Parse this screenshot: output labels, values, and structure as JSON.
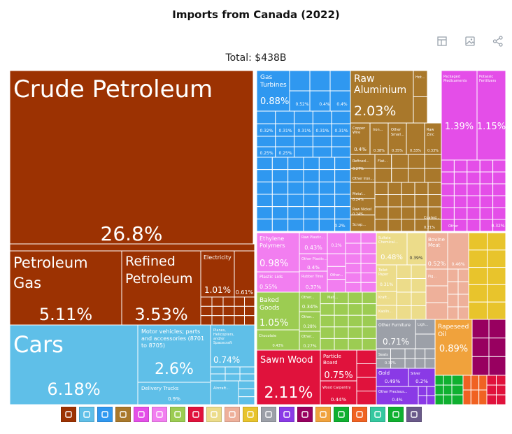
{
  "title": "Imports from Canada (2022)",
  "total_label": "Total: $438B",
  "toolbar": [
    {
      "name": "table-view-icon"
    },
    {
      "name": "image-download-icon"
    },
    {
      "name": "share-icon"
    }
  ],
  "colors": {
    "minerals": "#9c3202",
    "transport": "#5fbfe8",
    "machinery": "#2f98f0",
    "metals": "#a9782b",
    "chemicals": "#e44ee8",
    "plastics": "#f27ef0",
    "vegetables": "#9ccc52",
    "wood": "#e0123c",
    "paper": "#ecdc8a",
    "stone_glass": "#eeb09a",
    "foodstuffs": "#e8c42c",
    "misc": "#9ca0a8",
    "precious": "#8a3ae6",
    "animal": "#f0a23c",
    "textiles": "#0fb030",
    "instruments": "#980060",
    "hides": "#f06222"
  },
  "chart_data": {
    "type": "treemap",
    "title": "Imports from Canada (2022)",
    "total": "$438B",
    "items": [
      {
        "name": "Crude Petroleum",
        "share": 26.8,
        "value": "26.8%",
        "sector": "minerals"
      },
      {
        "name": "Petroleum Gas",
        "share": 5.11,
        "value": "5.11%",
        "sector": "minerals"
      },
      {
        "name": "Refined Petroleum",
        "share": 3.53,
        "value": "3.53%",
        "sector": "minerals"
      },
      {
        "name": "Electricity",
        "share": 1.01,
        "value": "1.01%",
        "sector": "minerals"
      },
      {
        "name": "",
        "share": 0.61,
        "value": "0.61%",
        "sector": "minerals"
      },
      {
        "name": "Cars",
        "share": 6.18,
        "value": "6.18%",
        "sector": "transport"
      },
      {
        "name": "Motor vehicles; parts and accessories (8701 to 8705)",
        "share": 2.6,
        "value": "2.6%",
        "sector": "transport"
      },
      {
        "name": "",
        "share": 0.74,
        "value": "0.74%",
        "sector": "transport"
      },
      {
        "name": "Delivery Trucks",
        "share": 0.9,
        "value": "0.9%",
        "sector": "transport"
      },
      {
        "name": "Gas Turbines",
        "share": 0.88,
        "value": "0.88%",
        "sector": "machinery"
      },
      {
        "name": "Raw Aluminium",
        "share": 2.03,
        "value": "2.03%",
        "sector": "metals"
      },
      {
        "name": "Copper Wire",
        "share": 0.4,
        "value": "0.4%",
        "sector": "metals"
      },
      {
        "name": "Packaged Medicaments",
        "share": 1.39,
        "value": "1.39%",
        "sector": "chemicals"
      },
      {
        "name": "Potassic Fertilizers",
        "share": 1.15,
        "value": "1.15%",
        "sector": "chemicals"
      },
      {
        "name": "Ethylene Polymers",
        "share": 0.98,
        "value": "0.98%",
        "sector": "plastics"
      },
      {
        "name": "Raw Plastic Sheeting",
        "share": 0.43,
        "value": "0.43%",
        "sector": "plastics"
      },
      {
        "name": "Plastic Lids",
        "share": 0.55,
        "value": "0.55%",
        "sector": "plastics"
      },
      {
        "name": "Rubber Tires",
        "share": 0.37,
        "value": "0.37%",
        "sector": "plastics"
      },
      {
        "name": "Baked Goods",
        "share": 1.05,
        "value": "1.05%",
        "sector": "vegetables"
      },
      {
        "name": "Chocolate",
        "share": 0.43,
        "value": "0.43%",
        "sector": "vegetables"
      },
      {
        "name": "Rapeseed Oil",
        "share": 0.89,
        "value": "0.89%",
        "sector": "animal"
      },
      {
        "name": "Sawn Wood",
        "share": 2.11,
        "value": "2.11%",
        "sector": "wood"
      },
      {
        "name": "Particle Board",
        "share": 0.75,
        "value": "0.75%",
        "sector": "wood"
      },
      {
        "name": "Wood Carpentry",
        "share": 0.44,
        "value": "0.44%",
        "sector": "wood"
      },
      {
        "name": "Sulfate Chemical Woodpulp",
        "share": 0.48,
        "value": "0.48%",
        "sector": "paper"
      },
      {
        "name": "Toilet Paper",
        "share": 0.31,
        "value": "0.31%",
        "sector": "paper"
      },
      {
        "name": "Bovine Meat",
        "share": 0.52,
        "value": "0.52%",
        "sector": "stone_glass"
      },
      {
        "name": "Other Furniture",
        "share": 0.71,
        "value": "0.71%",
        "sector": "misc"
      },
      {
        "name": "Gold",
        "share": 0.49,
        "value": "0.49%",
        "sector": "precious"
      },
      {
        "name": "Silver",
        "share": 0.2,
        "value": "0.2%",
        "sector": "precious"
      },
      {
        "name": "Other Precious Metals",
        "share": 0.4,
        "value": "0.4%",
        "sector": "precious"
      }
    ],
    "legend_sectors": [
      "minerals",
      "transport",
      "machinery",
      "metals",
      "chemicals",
      "plastics",
      "vegetables",
      "wood",
      "paper",
      "stone_glass",
      "foodstuffs",
      "misc",
      "precious",
      "instruments",
      "animal",
      "textiles",
      "hides",
      "instruments"
    ]
  },
  "tiles": [
    {
      "id": "crude",
      "sector": "minerals",
      "name": "Crude Petroleum",
      "val": "26.8%",
      "big": true
    },
    {
      "id": "pgas",
      "sector": "minerals",
      "name": "Petroleum Gas",
      "val": "5.11%",
      "big": true
    },
    {
      "id": "refined",
      "sector": "minerals",
      "name": "Refined Petroleum",
      "val": "3.53%",
      "big": true
    },
    {
      "id": "elec",
      "sector": "minerals",
      "name": "Electricity",
      "val": "1.01%",
      "big": false
    },
    {
      "id": "m061",
      "sector": "minerals",
      "name": "",
      "val": "0.61%",
      "big": false
    },
    {
      "id": "cars",
      "sector": "transport",
      "name": "Cars",
      "val": "6.18%",
      "big": true
    },
    {
      "id": "motorparts",
      "sector": "transport",
      "name": "Motor vehicles; parts and accessories (8701 to 8705)",
      "val": "2.6%",
      "big": true
    },
    {
      "id": "aircraft",
      "sector": "transport",
      "name": "Planes, Helicopters, and/or Spacecraft",
      "val": "0.74%",
      "big": false
    },
    {
      "id": "trucks",
      "sector": "transport",
      "name": "Delivery Trucks",
      "val": "0.9%",
      "big": false
    },
    {
      "id": "turbines",
      "sector": "machinery",
      "name": "Gas Turbines",
      "val": "0.88%",
      "big": false
    },
    {
      "id": "aluminium",
      "sector": "metals",
      "name": "Raw Aluminium",
      "val": "2.03%",
      "big": true
    },
    {
      "id": "copper",
      "sector": "metals",
      "name": "Copper Wire",
      "val": "0.4%",
      "big": false
    },
    {
      "id": "medic",
      "sector": "chemicals",
      "name": "Packaged Medicaments",
      "val": "1.39%",
      "big": false
    },
    {
      "id": "potass",
      "sector": "chemicals",
      "name": "Potassic Fertilizers",
      "val": "1.15%",
      "big": false
    },
    {
      "id": "ethyl",
      "sector": "plastics",
      "name": "Ethylene Polymers",
      "val": "0.98%",
      "big": false
    },
    {
      "id": "rawplastic",
      "sector": "plastics",
      "name": "Raw Plastic Sheeting",
      "val": "0.43%",
      "big": false
    },
    {
      "id": "lids",
      "sector": "plastics",
      "name": "Plastic Lids",
      "val": "0.55%",
      "big": false
    },
    {
      "id": "tires",
      "sector": "plastics",
      "name": "Rubber Tires",
      "val": "0.37%",
      "big": false
    },
    {
      "id": "baked",
      "sector": "vegetables",
      "name": "Baked Goods",
      "val": "1.05%",
      "big": false
    },
    {
      "id": "choc",
      "sector": "vegetables",
      "name": "Chocolate",
      "val": "0.43%",
      "big": false
    },
    {
      "id": "sawn",
      "sector": "wood",
      "name": "Sawn Wood",
      "val": "2.11%",
      "big": true
    },
    {
      "id": "particle",
      "sector": "wood",
      "name": "Particle Board",
      "val": "0.75%",
      "big": false
    },
    {
      "id": "woodcarp",
      "sector": "wood",
      "name": "Wood Carpentry",
      "val": "0.44%",
      "big": false
    },
    {
      "id": "pulp",
      "sector": "paper",
      "name": "Sulfate Chemical...",
      "val": "0.48%",
      "big": false
    },
    {
      "id": "toilet",
      "sector": "paper",
      "name": "Toilet Paper",
      "val": "0.31%",
      "big": false
    },
    {
      "id": "bovine",
      "sector": "stone_glass",
      "name": "Bovine Meat",
      "val": "0.52%",
      "big": false
    },
    {
      "id": "rapeseed",
      "sector": "animal",
      "name": "Rapeseed Oil",
      "val": "0.89%",
      "big": false
    },
    {
      "id": "furniture",
      "sector": "misc",
      "name": "Other Furniture",
      "val": "0.71%",
      "big": false
    },
    {
      "id": "gold",
      "sector": "precious",
      "name": "Gold",
      "val": "0.49%",
      "big": false
    },
    {
      "id": "silver",
      "sector": "precious",
      "name": "Silver",
      "val": "0.2%",
      "big": false
    },
    {
      "id": "otherprec",
      "sector": "precious",
      "name": "Other Precious Metals",
      "val": "0.4%",
      "big": false
    }
  ],
  "legend": [
    {
      "name": "minerals-legend",
      "color": "#9c3202",
      "icon": "pickaxe-icon"
    },
    {
      "name": "transport-legend",
      "color": "#5fbfe8",
      "icon": "road-icon"
    },
    {
      "name": "machinery-legend",
      "color": "#2f98f0",
      "icon": "gear-icon"
    },
    {
      "name": "metals-legend",
      "color": "#a9782b",
      "icon": "anvil-icon"
    },
    {
      "name": "chemicals-legend",
      "color": "#e44ee8",
      "icon": "flask-icon"
    },
    {
      "name": "plastics-legend",
      "color": "#f27ef0",
      "icon": "recycle-icon"
    },
    {
      "name": "vegetables-legend",
      "color": "#9ccc52",
      "icon": "wheat-icon"
    },
    {
      "name": "wood-legend",
      "color": "#e0123c",
      "icon": "log-icon"
    },
    {
      "name": "paper-legend",
      "color": "#ecdc8a",
      "icon": "document-icon"
    },
    {
      "name": "stone-legend",
      "color": "#eeb09a",
      "icon": "brick-icon"
    },
    {
      "name": "foodstuffs-legend",
      "color": "#e8c42c",
      "icon": "food-icon"
    },
    {
      "name": "misc-legend",
      "color": "#9ca0a8",
      "icon": "box-icon"
    },
    {
      "name": "precious-legend",
      "color": "#8a3ae6",
      "icon": "diamond-icon"
    },
    {
      "name": "instruments-legend",
      "color": "#980060",
      "icon": "gauge-icon"
    },
    {
      "name": "animal-legend",
      "color": "#f0a23c",
      "icon": "fish-icon"
    },
    {
      "name": "textiles-legend",
      "color": "#0fb030",
      "icon": "shirt-icon"
    },
    {
      "name": "hides-legend",
      "color": "#f06222",
      "icon": "hide-icon"
    },
    {
      "name": "footwear-legend",
      "color": "#34c8a0",
      "icon": "shoe-icon"
    },
    {
      "name": "arms-legend",
      "color": "#0fb030",
      "icon": "weapon-icon"
    },
    {
      "name": "art-legend",
      "color": "#6a5a8a",
      "icon": "easel-icon"
    }
  ]
}
